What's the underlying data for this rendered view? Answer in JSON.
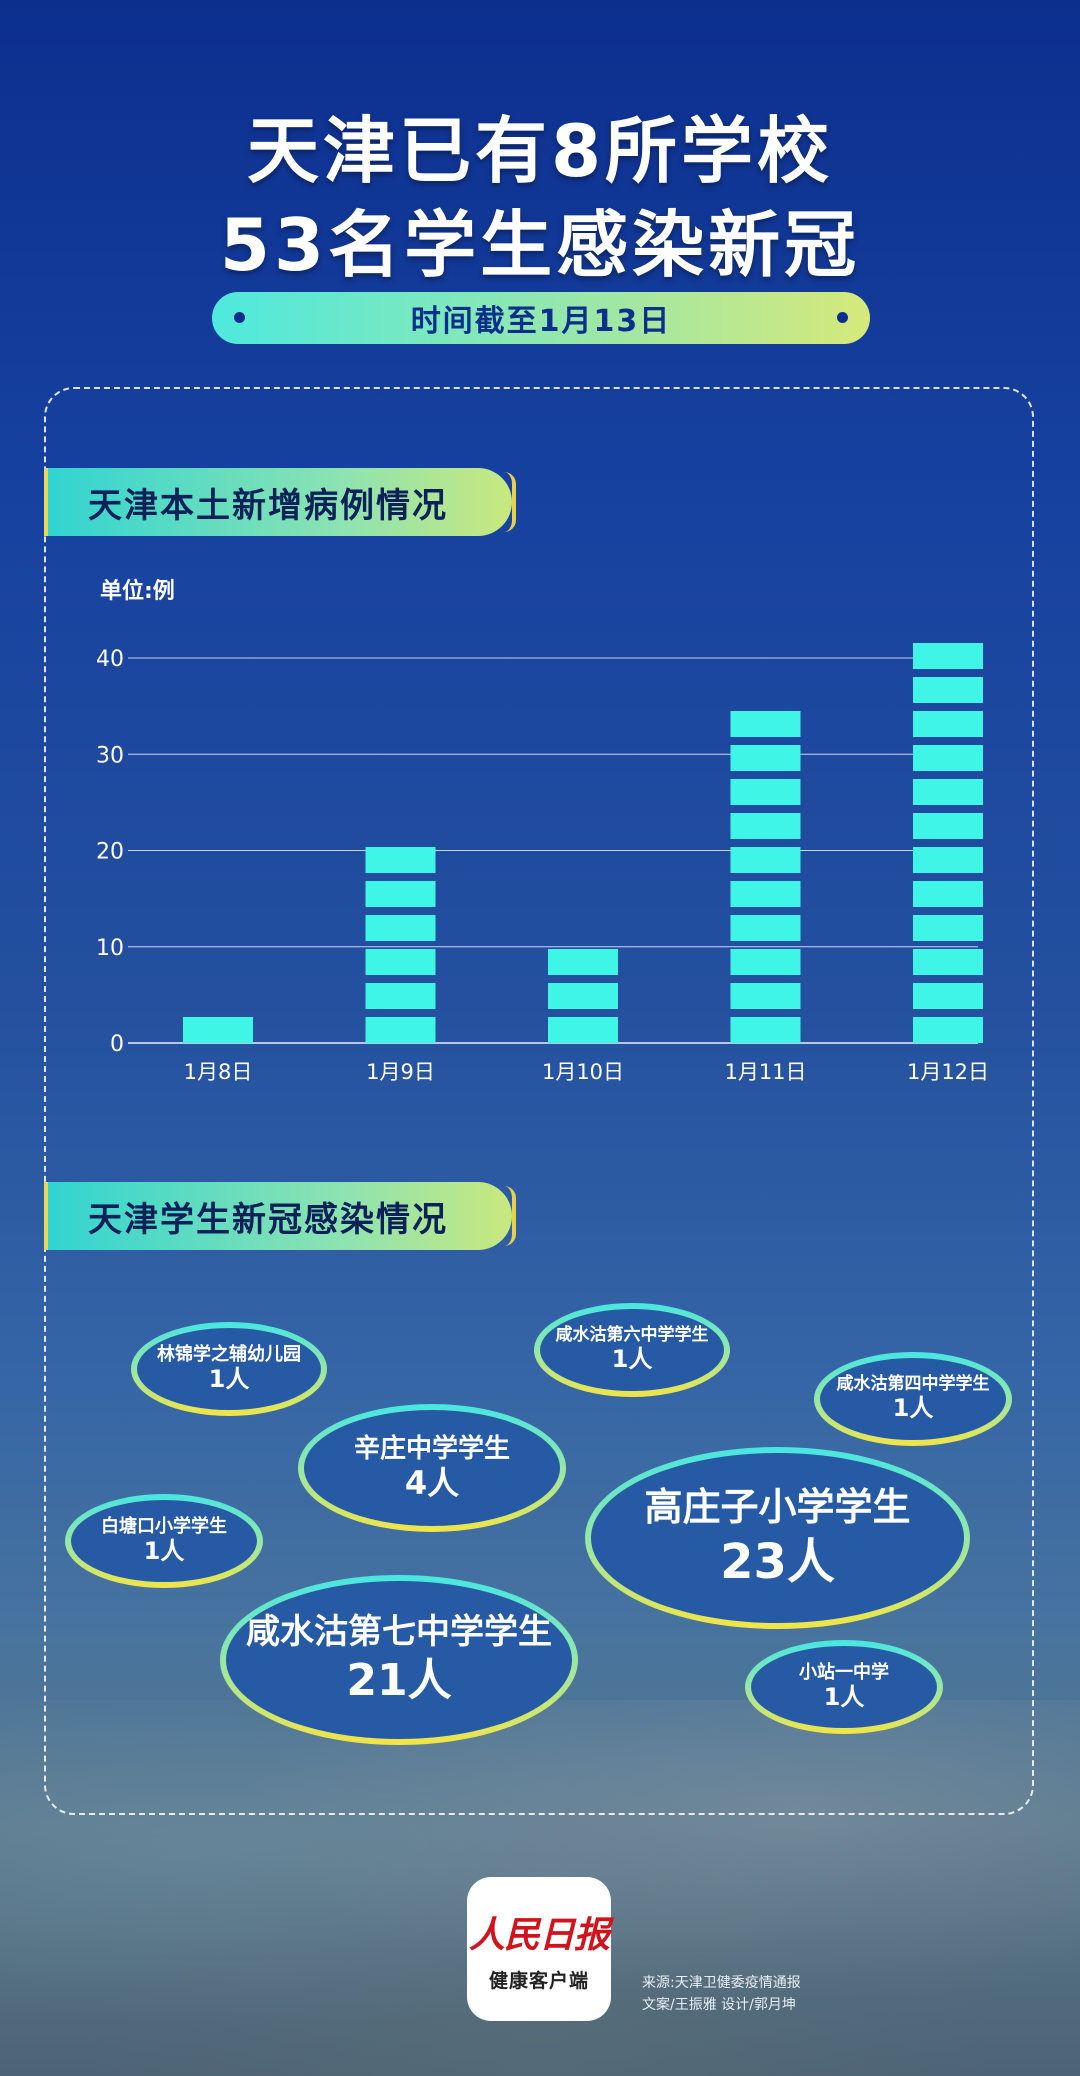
{
  "title_line1": "天津已有8所学校",
  "title_line2": "53名学生感染新冠",
  "date_label": "时间截至1月13日",
  "section1_title": "天津本土新增病例情况",
  "section2_title": "天津学生新冠感染情况",
  "chart_data": {
    "type": "bar",
    "ylabel": "单位:例",
    "categories": [
      "1月8日",
      "1月9日",
      "1月10日",
      "1月11日",
      "1月12日"
    ],
    "values": [
      3,
      21,
      10,
      35,
      42
    ],
    "ylim": [
      0,
      40
    ],
    "yticks": [
      0,
      10,
      20,
      30,
      40
    ],
    "grid": true,
    "colors": {
      "bar": "#3ff5e6",
      "grid": "#c9d4ee",
      "text": "#ffffff"
    }
  },
  "schools": [
    {
      "name": "林锦学之辅幼儿园",
      "count": "1人"
    },
    {
      "name": "咸水沽第六中学学生",
      "count": "1人"
    },
    {
      "name": "咸水沽第四中学学生",
      "count": "1人"
    },
    {
      "name": "辛庄中学学生",
      "count": "4人"
    },
    {
      "name": "白塘口小学学生",
      "count": "1人"
    },
    {
      "name": "高庄子小学学生",
      "count": "23人"
    },
    {
      "name": "咸水沽第七中学学生",
      "count": "21人"
    },
    {
      "name": "小站一中学",
      "count": "1人"
    }
  ],
  "logo": {
    "main": "人民日报",
    "sub": "健康客户端"
  },
  "credits": {
    "source": "来源:天津卫健委疫情通报",
    "authors": "文案/王振雅  设计/郭月坤"
  }
}
